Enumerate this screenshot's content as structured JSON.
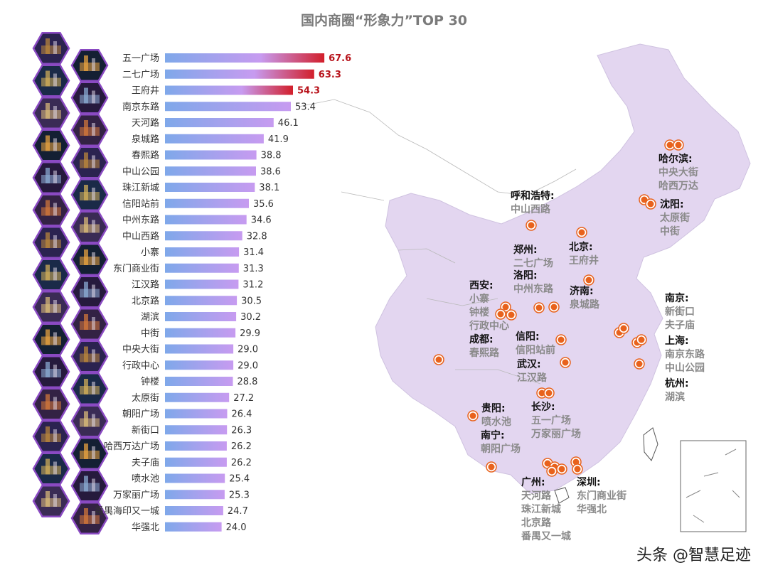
{
  "chart_data": {
    "type": "bar",
    "orientation": "horizontal",
    "title": "国内商圈“形象力”TOP 30",
    "categories": [
      "五一广场",
      "二七广场",
      "王府井",
      "南京东路",
      "天河路",
      "泉城路",
      "春熙路",
      "中山公园",
      "珠江新城",
      "信阳站前",
      "中州东路",
      "中山西路",
      "小寨",
      "东门商业街",
      "江汉路",
      "北京路",
      "湖滨",
      "中街",
      "中央大街",
      "行政中心",
      "钟楼",
      "太原街",
      "朝阳广场",
      "新街口",
      "哈西万达广场",
      "夫子庙",
      "喷水池",
      "万家丽广场",
      "番禺海印又一城",
      "华强北"
    ],
    "values": [
      67.6,
      63.3,
      54.3,
      53.4,
      46.1,
      41.9,
      38.8,
      38.6,
      38.1,
      35.6,
      34.6,
      32.8,
      31.4,
      31.3,
      31.2,
      30.5,
      30.2,
      29.9,
      29.0,
      29.0,
      28.8,
      27.2,
      26.4,
      26.3,
      26.2,
      26.2,
      25.4,
      25.3,
      24.7,
      24.0
    ],
    "value_labels": [
      "67.6",
      "63.3",
      "54.3",
      "53.4",
      "46.1",
      "41.9",
      "38.8",
      "38.6",
      "38.1",
      "35.6",
      "34.6",
      "32.8",
      "31.4",
      "31.3",
      "31.2",
      "30.5",
      "30.2",
      "29.9",
      "29.0",
      "29.0",
      "28.8",
      "27.2",
      "26.4",
      "26.3",
      "26.2",
      "26.2",
      "25.4",
      "25.3",
      "24.7",
      "24.0"
    ],
    "highlight_top": 3,
    "xlim": [
      0,
      70
    ],
    "grid": false,
    "colors": {
      "bar_start": "#7fa8ea",
      "bar_end": "#c79bf0",
      "highlight": "#d21f2b",
      "highlight_label": "#b8141c",
      "map_fill": "#e3d6f0",
      "marker": "#e8621c",
      "hex_border": "#8a4ac2"
    }
  },
  "map_labels": [
    {
      "city": "哈尔滨:",
      "places": [
        "中央大街",
        "哈西万达"
      ]
    },
    {
      "city": "沈阳:",
      "places": [
        "太原街",
        "中街"
      ]
    },
    {
      "city": "呼和浩特:",
      "places": [
        "中山西路"
      ]
    },
    {
      "city": "北京:",
      "places": [
        "王府井"
      ]
    },
    {
      "city": "郑州:",
      "places": [
        "二七广场"
      ]
    },
    {
      "city": "洛阳:",
      "places": [
        "中州东路"
      ]
    },
    {
      "city": "济南:",
      "places": [
        "泉城路"
      ]
    },
    {
      "city": "西安:",
      "places": [
        "小寨",
        "钟楼",
        "行政中心"
      ]
    },
    {
      "city": "南京:",
      "places": [
        "新街口",
        "夫子庙"
      ]
    },
    {
      "city": "上海:",
      "places": [
        "南京东路",
        "中山公园"
      ]
    },
    {
      "city": "杭州:",
      "places": [
        "湖滨"
      ]
    },
    {
      "city": "成都:",
      "places": [
        "春熙路"
      ]
    },
    {
      "city": "信阳:",
      "places": [
        "信阳站前"
      ]
    },
    {
      "city": "武汉:",
      "places": [
        "江汉路"
      ]
    },
    {
      "city": "贵阳:",
      "places": [
        "喷水池"
      ]
    },
    {
      "city": "长沙:",
      "places": [
        "五一广场",
        "万家丽广场"
      ]
    },
    {
      "city": "南宁:",
      "places": [
        "朝阳广场"
      ]
    },
    {
      "city": "广州:",
      "places": [
        "天河路",
        "珠江新城",
        "北京路",
        "番禺又一城"
      ]
    },
    {
      "city": "深圳:",
      "places": [
        "东门商业街",
        "华强北"
      ]
    }
  ],
  "watermark": "头条 @智慧足迹"
}
